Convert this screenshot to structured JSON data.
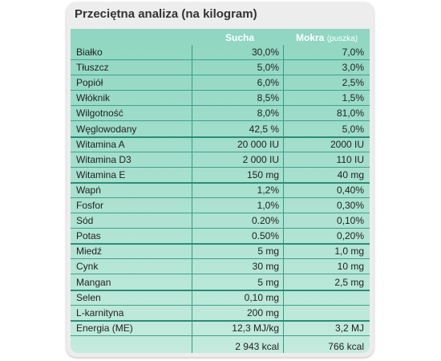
{
  "title": "Przeciętna analiza (na kilogram)",
  "header": {
    "sucha": "Sucha",
    "mokra": "Mokra",
    "mokra_sub": "(puszka)"
  },
  "rows": [
    {
      "label": "Białko",
      "sucha": "30,0%",
      "mokra": "7,0%"
    },
    {
      "label": "Tłuszcz",
      "sucha": "5,0%",
      "mokra": "3,0%"
    },
    {
      "label": "Popiół",
      "sucha": "6,0%",
      "mokra": "2,5%"
    },
    {
      "label": "Włóknik",
      "sucha": "8,5%",
      "mokra": "1,5%"
    },
    {
      "label": "Wilgotność",
      "sucha": "8,0%",
      "mokra": "81,0%"
    },
    {
      "label": "Węglowodany",
      "sucha": "42,5 %",
      "mokra": "5,0%"
    },
    {
      "label": "Witamina A",
      "sucha": "20 000 IU",
      "mokra": "2000 IU"
    },
    {
      "label": "Witamina D3",
      "sucha": "2 000 IU",
      "mokra": "110 IU"
    },
    {
      "label": "Witamina E",
      "sucha": "150 mg",
      "mokra": "40 mg"
    },
    {
      "label": "Wapń",
      "sucha": "1,2%",
      "mokra": "0,40%"
    },
    {
      "label": "Fosfor",
      "sucha": "1,0%",
      "mokra": "0,30%"
    },
    {
      "label": "Sód",
      "sucha": "0.20%",
      "mokra": "0,10%"
    },
    {
      "label": "Potas",
      "sucha": "0.50%",
      "mokra": "0,20%"
    },
    {
      "label": "Miedź",
      "sucha": "5 mg",
      "mokra": "1,0 mg"
    },
    {
      "label": "Cynk",
      "sucha": "30 mg",
      "mokra": "10 mg"
    },
    {
      "label": "Mangan",
      "sucha": "5 mg",
      "mokra": "2,5 mg"
    },
    {
      "label": "Selen",
      "sucha": "0,10 mg",
      "mokra": ""
    },
    {
      "label": "L-karnityna",
      "sucha": "200 mg",
      "mokra": ""
    },
    {
      "label": "Energia (ME)",
      "sucha": "12,3 MJ/kg",
      "mokra": "3,2 MJ"
    },
    {
      "label": "",
      "sucha": "2 943 kcal",
      "mokra": "766 kcal"
    }
  ]
}
